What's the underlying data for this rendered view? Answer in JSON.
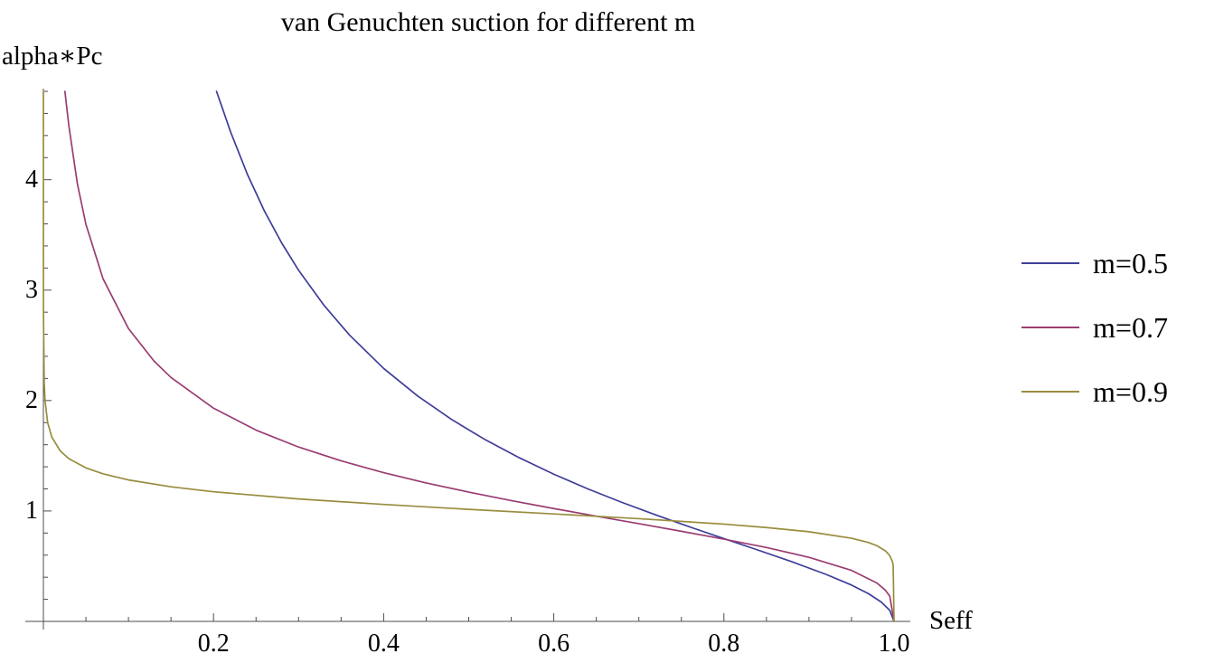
{
  "title": "van Genuchten suction for different m",
  "axis_labels": {
    "x": "Seff",
    "y": "alpha∗Pc"
  },
  "legend": {
    "position": "right-outside",
    "items": [
      {
        "label": "m=0.5"
      },
      {
        "label": "m=0.7"
      },
      {
        "label": "m=0.9"
      }
    ]
  },
  "colors": {
    "background": "#ffffff",
    "axis": "#4d4d4d",
    "text": "#000000",
    "series_1": "#3F3D99",
    "series_2": "#993D71",
    "series_3": "#998C3D"
  },
  "chart_data": {
    "type": "line",
    "title": "van Genuchten suction for different m",
    "xlabel": "Seff",
    "ylabel": "alpha∗Pc",
    "xlim": [
      0,
      1.0
    ],
    "ylim": [
      0,
      4.8
    ],
    "grid": false,
    "legend_position": "right-outside",
    "x_ticks": {
      "major": [
        0.2,
        0.4,
        0.6,
        0.8,
        1.0
      ],
      "labels": [
        "0.2",
        "0.4",
        "0.6",
        "0.8",
        "1.0"
      ],
      "minor_step": 0.05
    },
    "y_ticks": {
      "major": [
        1,
        2,
        3,
        4
      ],
      "labels": [
        "1",
        "2",
        "3",
        "4"
      ],
      "minor_step": 0.2
    },
    "series": [
      {
        "name": "m=0.5",
        "m": 0.5,
        "color": "#3F3D99",
        "points": [
          [
            0.2035,
            4.8
          ],
          [
            0.21,
            4.657
          ],
          [
            0.22,
            4.434
          ],
          [
            0.24,
            4.045
          ],
          [
            0.26,
            3.714
          ],
          [
            0.28,
            3.429
          ],
          [
            0.3,
            3.18
          ],
          [
            0.33,
            2.861
          ],
          [
            0.36,
            2.592
          ],
          [
            0.4,
            2.291
          ],
          [
            0.44,
            2.041
          ],
          [
            0.48,
            1.828
          ],
          [
            0.52,
            1.643
          ],
          [
            0.56,
            1.48
          ],
          [
            0.6,
            1.333
          ],
          [
            0.64,
            1.2
          ],
          [
            0.68,
            1.078
          ],
          [
            0.72,
            0.964
          ],
          [
            0.76,
            0.855
          ],
          [
            0.8,
            0.75
          ],
          [
            0.84,
            0.646
          ],
          [
            0.88,
            0.54
          ],
          [
            0.92,
            0.426
          ],
          [
            0.95,
            0.329
          ],
          [
            0.97,
            0.251
          ],
          [
            0.985,
            0.175
          ],
          [
            0.995,
            0.1
          ],
          [
            1.0,
            0
          ]
        ]
      },
      {
        "name": "m=0.7",
        "m": 0.7,
        "color": "#993D71",
        "points": [
          [
            0.0253,
            4.8
          ],
          [
            0.03,
            4.485
          ],
          [
            0.04,
            3.961
          ],
          [
            0.05,
            3.596
          ],
          [
            0.07,
            3.105
          ],
          [
            0.1,
            2.652
          ],
          [
            0.13,
            2.358
          ],
          [
            0.15,
            2.209
          ],
          [
            0.2,
            1.931
          ],
          [
            0.25,
            1.732
          ],
          [
            0.3,
            1.579
          ],
          [
            0.35,
            1.454
          ],
          [
            0.4,
            1.347
          ],
          [
            0.45,
            1.254
          ],
          [
            0.5,
            1.171
          ],
          [
            0.55,
            1.094
          ],
          [
            0.6,
            1.022
          ],
          [
            0.65,
            0.953
          ],
          [
            0.7,
            0.885
          ],
          [
            0.75,
            0.816
          ],
          [
            0.8,
            0.745
          ],
          [
            0.85,
            0.669
          ],
          [
            0.9,
            0.58
          ],
          [
            0.95,
            0.462
          ],
          [
            0.98,
            0.347
          ],
          [
            0.99,
            0.281
          ],
          [
            0.995,
            0.228
          ],
          [
            1.0,
            0
          ]
        ]
      },
      {
        "name": "m=0.9",
        "m": 0.9,
        "color": "#998C3D",
        "points": [
          [
            7e-07,
            4.8
          ],
          [
            1e-06,
            4.641
          ],
          [
            1e-05,
            3.594
          ],
          [
            0.0001,
            2.783
          ],
          [
            0.001,
            2.154
          ],
          [
            0.002,
            1.995
          ],
          [
            0.005,
            1.801
          ],
          [
            0.01,
            1.667
          ],
          [
            0.02,
            1.542
          ],
          [
            0.03,
            1.473
          ],
          [
            0.05,
            1.39
          ],
          [
            0.07,
            1.337
          ],
          [
            0.1,
            1.281
          ],
          [
            0.15,
            1.219
          ],
          [
            0.2,
            1.174
          ],
          [
            0.3,
            1.109
          ],
          [
            0.4,
            1.059
          ],
          [
            0.5,
            1.015
          ],
          [
            0.6,
            0.973
          ],
          [
            0.7,
            0.93
          ],
          [
            0.8,
            0.881
          ],
          [
            0.85,
            0.85
          ],
          [
            0.9,
            0.812
          ],
          [
            0.95,
            0.753
          ],
          [
            0.97,
            0.714
          ],
          [
            0.98,
            0.685
          ],
          [
            0.99,
            0.638
          ],
          [
            0.995,
            0.595
          ],
          [
            0.998,
            0.543
          ],
          [
            0.999,
            0.507
          ],
          [
            1.0,
            0
          ]
        ]
      }
    ]
  }
}
